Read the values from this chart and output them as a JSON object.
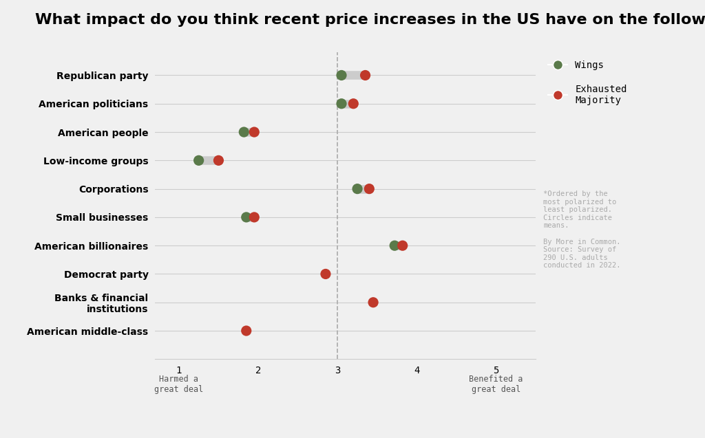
{
  "title": "What impact do you think recent price increases in the US have on the following groups*?",
  "categories": [
    "Republican party",
    "American politicians",
    "American people",
    "Low-income groups",
    "Corporations",
    "Small businesses",
    "American billionaires",
    "Democrat party",
    "Banks & financial\ninstitutions",
    "American middle-class"
  ],
  "wings_values": [
    3.05,
    3.05,
    1.82,
    1.25,
    3.25,
    1.85,
    3.72,
    null,
    null,
    null
  ],
  "exhausted_values": [
    3.35,
    3.2,
    1.95,
    1.5,
    3.4,
    1.95,
    3.82,
    2.85,
    3.45,
    1.85
  ],
  "wings_color": "#5a7a4a",
  "exhausted_color": "#c0392b",
  "connector_color": "#cccccc",
  "background_color": "#f0f0f0",
  "xlim": [
    0.7,
    5.5
  ],
  "xticks": [
    1,
    2,
    3,
    4,
    5
  ],
  "xlabel_left": "Harmed a\ngreat deal",
  "xlabel_right": "Benefited a\ngreat deal",
  "dashed_line_x": 3.0,
  "legend_wings": "Wings",
  "legend_exhausted": "Exhausted\nMajority",
  "annotation": "*Ordered by the\nmost polarized to\nleast polarized.\nCircles indicate\nmeans.\n\nBy More in Common.\nSource: Survey of\n290 U.S. adults\nconducted in 2022.",
  "marker_size": 120,
  "title_fontsize": 16,
  "label_fontsize": 10,
  "tick_fontsize": 10
}
